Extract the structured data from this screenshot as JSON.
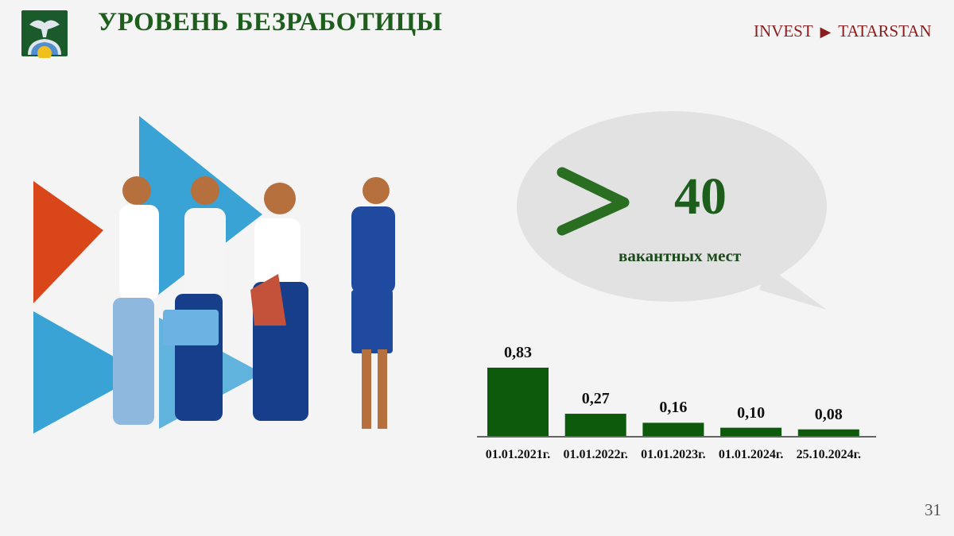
{
  "header": {
    "title": "УРОВЕНЬ БЕЗРАБОТИЦЫ",
    "brand_left": "INVEST",
    "brand_arrow": "▶",
    "brand_right": "TATARSTAN"
  },
  "vacancies": {
    "symbol": ">",
    "number": "40",
    "label": "вакантных мест"
  },
  "page_number": "31",
  "colors": {
    "title": "#1d5e1d",
    "bar": "#0d5a0d",
    "brand": "#8a1d1d",
    "bubble": "#e2e2e2"
  },
  "chart_data": {
    "type": "bar",
    "categories": [
      "01.01.2021г.",
      "01.01.2022г.",
      "01.01.2023г.",
      "01.01.2024г.",
      "25.10.2024г."
    ],
    "values": [
      0.83,
      0.27,
      0.16,
      0.1,
      0.08
    ],
    "data_labels": [
      "0,83",
      "0,27",
      "0,16",
      "0,10",
      "0,08"
    ],
    "grid": false,
    "legend": "none"
  }
}
